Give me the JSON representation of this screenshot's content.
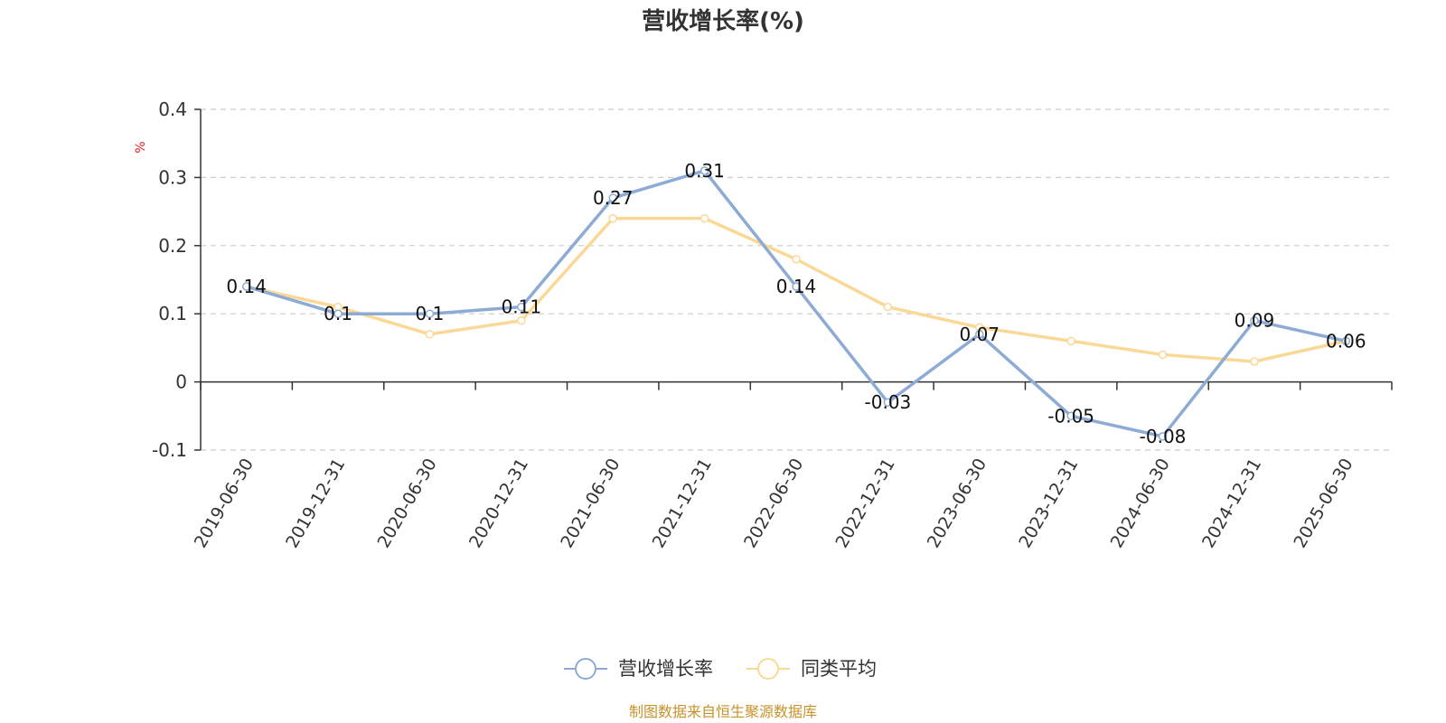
{
  "chart_data": {
    "type": "line",
    "title": "营收增长率(%)",
    "ylabel": "%",
    "categories": [
      "2019-06-30",
      "2019-12-31",
      "2020-06-30",
      "2020-12-31",
      "2021-06-30",
      "2021-12-31",
      "2022-06-30",
      "2022-12-31",
      "2023-06-30",
      "2023-12-31",
      "2024-06-30",
      "2024-12-31",
      "2025-06-30"
    ],
    "ylim": [
      -0.1,
      0.4
    ],
    "yticks": [
      "0.4",
      "0.3",
      "0.2",
      "0.1",
      "0",
      "-0.1"
    ],
    "grid": true,
    "legend_position": "bottom",
    "series": [
      {
        "name": "营收增长率",
        "color": "#8eabd6",
        "values": [
          0.14,
          0.1,
          0.1,
          0.11,
          0.27,
          0.31,
          0.14,
          -0.03,
          0.07,
          -0.05,
          -0.08,
          0.09,
          0.06
        ],
        "labels": [
          "0.14",
          "0.1",
          "0.1",
          "0.11",
          "0.27",
          "0.31",
          "0.14",
          "-0.03",
          "0.07",
          "-0.05",
          "-0.08",
          "0.09",
          "0.06"
        ]
      },
      {
        "name": "同类平均",
        "color": "#fad896",
        "values": [
          0.14,
          0.11,
          0.07,
          0.09,
          0.24,
          0.24,
          0.18,
          0.11,
          0.08,
          0.06,
          0.04,
          0.03,
          0.06
        ]
      }
    ]
  },
  "unit_color": "#e02020",
  "source_text": "制图数据来自恒生聚源数据库",
  "source_color": "#c8922a"
}
